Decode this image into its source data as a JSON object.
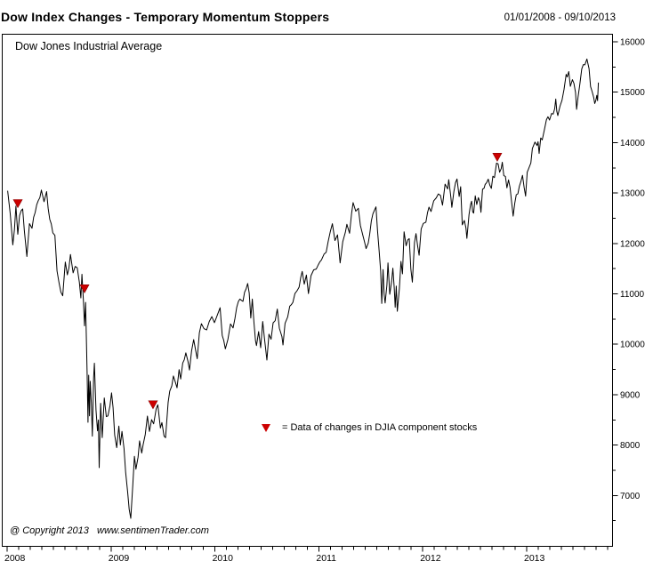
{
  "header": {
    "title": "Dow Index Changes - Temporary Momentum Stoppers",
    "date_range": "01/01/2008 - 09/10/2013"
  },
  "watermark": "@ Copyright 2013   www.sentimenTrader.com",
  "chart_data": {
    "type": "line",
    "title": "Dow Index Changes - Temporary Momentum Stoppers",
    "series_name": "Dow Jones Industrial Average",
    "x_unit": "decimal_year",
    "x_range": [
      2008.0,
      2013.82
    ],
    "y_range": [
      6000,
      16160
    ],
    "x_ticks": [
      2008,
      2009,
      2010,
      2011,
      2012,
      2013
    ],
    "x_tick_labels": [
      "2008",
      "2009",
      "2010",
      "2011",
      "2012",
      "2013"
    ],
    "y_ticks": [
      7000,
      8000,
      9000,
      10000,
      11000,
      12000,
      13000,
      14000,
      15000,
      16000
    ],
    "y_tick_labels": [
      "7000",
      "8000",
      "9000",
      "10000",
      "11000",
      "12000",
      "13000",
      "14000",
      "15000",
      "16000"
    ],
    "y_minor_step": 500,
    "grid": false,
    "line_color": "#000000",
    "legend_position": "inside-center-lower",
    "points": [
      [
        2008.005,
        13044
      ],
      [
        2008.03,
        12589
      ],
      [
        2008.055,
        11971
      ],
      [
        2008.07,
        12270
      ],
      [
        2008.085,
        12743
      ],
      [
        2008.103,
        12182
      ],
      [
        2008.12,
        12552
      ],
      [
        2008.15,
        12684
      ],
      [
        2008.165,
        12266
      ],
      [
        2008.19,
        11740
      ],
      [
        2008.215,
        12393
      ],
      [
        2008.24,
        12302
      ],
      [
        2008.27,
        12612
      ],
      [
        2008.3,
        12849
      ],
      [
        2008.33,
        13058
      ],
      [
        2008.355,
        12828
      ],
      [
        2008.38,
        13028
      ],
      [
        2008.41,
        12480
      ],
      [
        2008.44,
        12209
      ],
      [
        2008.46,
        12160
      ],
      [
        2008.48,
        11453
      ],
      [
        2008.5,
        11216
      ],
      [
        2008.535,
        10962
      ],
      [
        2008.56,
        11632
      ],
      [
        2008.58,
        11378
      ],
      [
        2008.61,
        11782
      ],
      [
        2008.635,
        11417
      ],
      [
        2008.655,
        11544
      ],
      [
        2008.675,
        11516
      ],
      [
        2008.695,
        11231
      ],
      [
        2008.71,
        10918
      ],
      [
        2008.72,
        11388
      ],
      [
        2008.735,
        10854
      ],
      [
        2008.745,
        10365
      ],
      [
        2008.755,
        10831
      ],
      [
        2008.77,
        9447
      ],
      [
        2008.778,
        8451
      ],
      [
        2008.785,
        9387
      ],
      [
        2008.793,
        8578
      ],
      [
        2008.8,
        9265
      ],
      [
        2008.81,
        8852
      ],
      [
        2008.82,
        8176
      ],
      [
        2008.832,
        9325
      ],
      [
        2008.84,
        9625
      ],
      [
        2008.855,
        8696
      ],
      [
        2008.87,
        8282
      ],
      [
        2008.878,
        8497
      ],
      [
        2008.886,
        7552
      ],
      [
        2008.9,
        8829
      ],
      [
        2008.915,
        8149
      ],
      [
        2008.935,
        8934
      ],
      [
        2008.955,
        8564
      ],
      [
        2008.97,
        8579
      ],
      [
        2008.99,
        8776
      ],
      [
        2009.005,
        9035
      ],
      [
        2009.02,
        8742
      ],
      [
        2009.035,
        8200
      ],
      [
        2009.055,
        7949
      ],
      [
        2009.075,
        8375
      ],
      [
        2009.09,
        8001
      ],
      [
        2009.105,
        8271
      ],
      [
        2009.125,
        7932
      ],
      [
        2009.14,
        7466
      ],
      [
        2009.16,
        7063
      ],
      [
        2009.175,
        6726
      ],
      [
        2009.19,
        6547
      ],
      [
        2009.21,
        7217
      ],
      [
        2009.225,
        7776
      ],
      [
        2009.24,
        7522
      ],
      [
        2009.26,
        7761
      ],
      [
        2009.275,
        8083
      ],
      [
        2009.295,
        7842
      ],
      [
        2009.31,
        8017
      ],
      [
        2009.33,
        8212
      ],
      [
        2009.35,
        8575
      ],
      [
        2009.37,
        8269
      ],
      [
        2009.39,
        8504
      ],
      [
        2009.41,
        8422
      ],
      [
        2009.435,
        8721
      ],
      [
        2009.45,
        8799
      ],
      [
        2009.475,
        8339
      ],
      [
        2009.49,
        8447
      ],
      [
        2009.51,
        8178
      ],
      [
        2009.525,
        8147
      ],
      [
        2009.55,
        8848
      ],
      [
        2009.565,
        9070
      ],
      [
        2009.585,
        9172
      ],
      [
        2009.6,
        9370
      ],
      [
        2009.62,
        9241
      ],
      [
        2009.635,
        9135
      ],
      [
        2009.655,
        9496
      ],
      [
        2009.67,
        9311
      ],
      [
        2009.69,
        9627
      ],
      [
        2009.72,
        9829
      ],
      [
        2009.74,
        9666
      ],
      [
        2009.755,
        9488
      ],
      [
        2009.775,
        9865
      ],
      [
        2009.795,
        10092
      ],
      [
        2009.815,
        9872
      ],
      [
        2009.83,
        9713
      ],
      [
        2009.85,
        10227
      ],
      [
        2009.87,
        10407
      ],
      [
        2009.895,
        10309
      ],
      [
        2009.92,
        10285
      ],
      [
        2009.945,
        10452
      ],
      [
        2009.97,
        10548
      ],
      [
        2009.995,
        10428
      ],
      [
        2010.03,
        10618
      ],
      [
        2010.05,
        10725
      ],
      [
        2010.07,
        10172
      ],
      [
        2010.1,
        9908
      ],
      [
        2010.125,
        10099
      ],
      [
        2010.15,
        10402
      ],
      [
        2010.175,
        10325
      ],
      [
        2010.21,
        10733
      ],
      [
        2010.24,
        10896
      ],
      [
        2010.27,
        10850
      ],
      [
        2010.3,
        11097
      ],
      [
        2010.315,
        11205
      ],
      [
        2010.33,
        11019
      ],
      [
        2010.345,
        10520
      ],
      [
        2010.36,
        10896
      ],
      [
        2010.375,
        10444
      ],
      [
        2010.39,
        10068
      ],
      [
        2010.4,
        9974
      ],
      [
        2010.42,
        10250
      ],
      [
        2010.44,
        9932
      ],
      [
        2010.46,
        10451
      ],
      [
        2010.475,
        10143
      ],
      [
        2010.5,
        9686
      ],
      [
        2010.52,
        10199
      ],
      [
        2010.54,
        10098
      ],
      [
        2010.56,
        10425
      ],
      [
        2010.58,
        10467
      ],
      [
        2010.6,
        10698
      ],
      [
        2010.62,
        10320
      ],
      [
        2010.645,
        10151
      ],
      [
        2010.655,
        9986
      ],
      [
        2010.675,
        10415
      ],
      [
        2010.7,
        10544
      ],
      [
        2010.72,
        10754
      ],
      [
        2010.75,
        10830
      ],
      [
        2010.77,
        11006
      ],
      [
        2010.79,
        11062
      ],
      [
        2010.81,
        11133
      ],
      [
        2010.84,
        11444
      ],
      [
        2010.86,
        11192
      ],
      [
        2010.88,
        11372
      ],
      [
        2010.9,
        11006
      ],
      [
        2010.925,
        11362
      ],
      [
        2010.95,
        11476
      ],
      [
        2010.975,
        11492
      ],
      [
        2010.995,
        11578
      ],
      [
        2011.025,
        11672
      ],
      [
        2011.05,
        11787
      ],
      [
        2011.07,
        11823
      ],
      [
        2011.09,
        12040
      ],
      [
        2011.11,
        12229
      ],
      [
        2011.13,
        12391
      ],
      [
        2011.155,
        12058
      ],
      [
        2011.18,
        12170
      ],
      [
        2011.205,
        11613
      ],
      [
        2011.23,
        12037
      ],
      [
        2011.255,
        12221
      ],
      [
        2011.27,
        12380
      ],
      [
        2011.295,
        12201
      ],
      [
        2011.315,
        12596
      ],
      [
        2011.33,
        12810
      ],
      [
        2011.355,
        12638
      ],
      [
        2011.38,
        12696
      ],
      [
        2011.4,
        12356
      ],
      [
        2011.425,
        12151
      ],
      [
        2011.455,
        11897
      ],
      [
        2011.475,
        12004
      ],
      [
        2011.49,
        12188
      ],
      [
        2011.52,
        12583
      ],
      [
        2011.55,
        12724
      ],
      [
        2011.565,
        12240
      ],
      [
        2011.58,
        11867
      ],
      [
        2011.595,
        11445
      ],
      [
        2011.605,
        10810
      ],
      [
        2011.618,
        11482
      ],
      [
        2011.628,
        10991
      ],
      [
        2011.638,
        10818
      ],
      [
        2011.655,
        11177
      ],
      [
        2011.665,
        11614
      ],
      [
        2011.682,
        10992
      ],
      [
        2011.7,
        11247
      ],
      [
        2011.712,
        11509
      ],
      [
        2011.725,
        11124
      ],
      [
        2011.735,
        10734
      ],
      [
        2011.745,
        11154
      ],
      [
        2011.755,
        10655
      ],
      [
        2011.775,
        11103
      ],
      [
        2011.79,
        11644
      ],
      [
        2011.805,
        11397
      ],
      [
        2011.82,
        12231
      ],
      [
        2011.84,
        11955
      ],
      [
        2011.855,
        12068
      ],
      [
        2011.87,
        12096
      ],
      [
        2011.885,
        11494
      ],
      [
        2011.9,
        11232
      ],
      [
        2011.92,
        12020
      ],
      [
        2011.935,
        12196
      ],
      [
        2011.95,
        11955
      ],
      [
        2011.965,
        11766
      ],
      [
        2011.985,
        12287
      ],
      [
        2012.005,
        12397
      ],
      [
        2012.03,
        12422
      ],
      [
        2012.06,
        12720
      ],
      [
        2012.08,
        12633
      ],
      [
        2012.105,
        12845
      ],
      [
        2012.13,
        12904
      ],
      [
        2012.15,
        12983
      ],
      [
        2012.17,
        12952
      ],
      [
        2012.19,
        12759
      ],
      [
        2012.215,
        13177
      ],
      [
        2012.24,
        13081
      ],
      [
        2012.25,
        13264
      ],
      [
        2012.27,
        12929
      ],
      [
        2012.28,
        12716
      ],
      [
        2012.3,
        13032
      ],
      [
        2012.315,
        13204
      ],
      [
        2012.33,
        13279
      ],
      [
        2012.35,
        12932
      ],
      [
        2012.365,
        13125
      ],
      [
        2012.38,
        12369
      ],
      [
        2012.4,
        12455
      ],
      [
        2012.415,
        12311
      ],
      [
        2012.425,
        12101
      ],
      [
        2012.445,
        12573
      ],
      [
        2012.46,
        12767
      ],
      [
        2012.47,
        12837
      ],
      [
        2012.48,
        12627
      ],
      [
        2012.49,
        12602
      ],
      [
        2012.505,
        12944
      ],
      [
        2012.52,
        12772
      ],
      [
        2012.535,
        12908
      ],
      [
        2012.55,
        12823
      ],
      [
        2012.56,
        12617
      ],
      [
        2012.575,
        13076
      ],
      [
        2012.59,
        13096
      ],
      [
        2012.6,
        13169
      ],
      [
        2012.615,
        13207
      ],
      [
        2012.63,
        13275
      ],
      [
        2012.645,
        13158
      ],
      [
        2012.66,
        13091
      ],
      [
        2012.675,
        13333
      ],
      [
        2012.69,
        13306
      ],
      [
        2012.71,
        13593
      ],
      [
        2012.725,
        13579
      ],
      [
        2012.74,
        13413
      ],
      [
        2012.755,
        13485
      ],
      [
        2012.765,
        13610
      ],
      [
        2012.78,
        13344
      ],
      [
        2012.795,
        13329
      ],
      [
        2012.81,
        13103
      ],
      [
        2012.825,
        13259
      ],
      [
        2012.84,
        13113
      ],
      [
        2012.855,
        12815
      ],
      [
        2012.87,
        12542
      ],
      [
        2012.885,
        12795
      ],
      [
        2012.9,
        12967
      ],
      [
        2012.915,
        12985
      ],
      [
        2012.93,
        13135
      ],
      [
        2012.945,
        13235
      ],
      [
        2012.96,
        13351
      ],
      [
        2012.975,
        13114
      ],
      [
        2012.99,
        12938
      ],
      [
        2013.005,
        13413
      ],
      [
        2013.02,
        13488
      ],
      [
        2013.04,
        13596
      ],
      [
        2013.055,
        13881
      ],
      [
        2013.08,
        14010
      ],
      [
        2013.1,
        13944
      ],
      [
        2013.11,
        14018
      ],
      [
        2013.12,
        13784
      ],
      [
        2013.135,
        14091
      ],
      [
        2013.15,
        14055
      ],
      [
        2013.17,
        14254
      ],
      [
        2013.19,
        14455
      ],
      [
        2013.205,
        14514
      ],
      [
        2013.22,
        14448
      ],
      [
        2013.24,
        14579
      ],
      [
        2013.255,
        14566
      ],
      [
        2013.27,
        14673
      ],
      [
        2013.28,
        14865
      ],
      [
        2013.29,
        14618
      ],
      [
        2013.3,
        14537
      ],
      [
        2013.32,
        14719
      ],
      [
        2013.34,
        14839
      ],
      [
        2013.36,
        15057
      ],
      [
        2013.38,
        15354
      ],
      [
        2013.39,
        15303
      ],
      [
        2013.405,
        15409
      ],
      [
        2013.42,
        15116
      ],
      [
        2013.44,
        15248
      ],
      [
        2013.455,
        15176
      ],
      [
        2013.47,
        14995
      ],
      [
        2013.48,
        14660
      ],
      [
        2013.495,
        14910
      ],
      [
        2013.51,
        15136
      ],
      [
        2013.53,
        15461
      ],
      [
        2013.545,
        15548
      ],
      [
        2013.56,
        15543
      ],
      [
        2013.58,
        15658
      ],
      [
        2013.6,
        15470
      ],
      [
        2013.615,
        15112
      ],
      [
        2013.63,
        15010
      ],
      [
        2013.645,
        14897
      ],
      [
        2013.655,
        14776
      ],
      [
        2013.665,
        14834
      ],
      [
        2013.675,
        14937
      ],
      [
        2013.682,
        14833
      ],
      [
        2013.69,
        15191
      ]
    ],
    "event_markers": {
      "symbol": "down-triangle",
      "color": "#cc0000",
      "legend": "= Data of changes in DJIA component stocks",
      "points": [
        [
          2008.103,
          12790
        ],
        [
          2008.745,
          11100
        ],
        [
          2009.404,
          8800
        ],
        [
          2012.717,
          13710
        ]
      ]
    }
  }
}
